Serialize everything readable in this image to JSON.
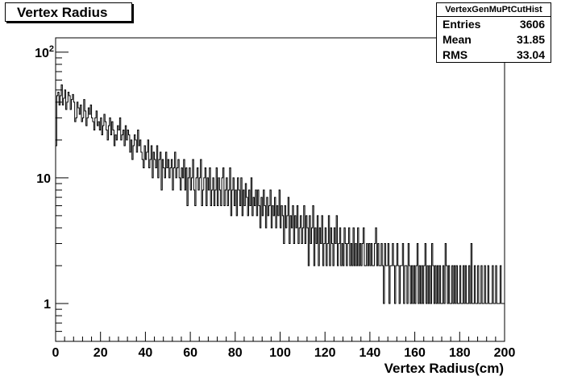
{
  "title": "Vertex Radius",
  "stats": {
    "name": "VertexGenMuPtCutHist",
    "rows": [
      {
        "label": "Entries",
        "value": "3606"
      },
      {
        "label": "Mean",
        "value": "31.85"
      },
      {
        "label": "RMS",
        "value": "33.04"
      }
    ]
  },
  "chart_data": {
    "type": "histogram",
    "title": "Vertex Radius",
    "xlabel": "Vertex Radius(cm)",
    "ylabel": "",
    "xlim": [
      0,
      200
    ],
    "ylim": [
      0.5,
      130
    ],
    "yscale": "log",
    "grid": false,
    "x_ticks": [
      "0",
      "20",
      "40",
      "60",
      "80",
      "100",
      "120",
      "140",
      "160",
      "180",
      "200"
    ],
    "y_ticks": [
      {
        "value": 1,
        "label": "1"
      },
      {
        "value": 10,
        "label": "10"
      },
      {
        "value": 100,
        "label": "10",
        "exponent": "2"
      }
    ],
    "bin_width": 0.5,
    "counts": [
      18,
      45,
      48,
      38,
      45,
      55,
      38,
      43,
      50,
      35,
      40,
      48,
      45,
      35,
      42,
      46,
      40,
      28,
      30,
      40,
      36,
      32,
      38,
      28,
      30,
      42,
      34,
      26,
      30,
      36,
      32,
      38,
      30,
      28,
      24,
      30,
      34,
      26,
      28,
      24,
      30,
      22,
      26,
      32,
      28,
      24,
      20,
      26,
      30,
      22,
      28,
      24,
      18,
      22,
      20,
      26,
      24,
      30,
      20,
      22,
      24,
      18,
      26,
      20,
      24,
      22,
      16,
      20,
      14,
      18,
      22,
      20,
      16,
      24,
      18,
      20,
      16,
      14,
      12,
      18,
      14,
      16,
      20,
      12,
      14,
      18,
      10,
      16,
      14,
      12,
      18,
      10,
      14,
      16,
      8,
      14,
      12,
      10,
      16,
      12,
      14,
      10,
      12,
      14,
      8,
      12,
      16,
      10,
      12,
      14,
      10,
      8,
      12,
      10,
      14,
      8,
      12,
      6,
      10,
      12,
      8,
      10,
      14,
      8,
      6,
      10,
      12,
      8,
      10,
      14,
      6,
      8,
      10,
      12,
      6,
      10,
      8,
      12,
      6,
      8,
      10,
      6,
      8,
      12,
      6,
      10,
      8,
      6,
      10,
      12,
      6,
      8,
      10,
      6,
      8,
      12,
      5,
      8,
      10,
      6,
      8,
      5,
      10,
      8,
      6,
      10,
      5,
      8,
      6,
      9,
      7,
      5,
      8,
      6,
      10,
      5,
      7,
      6,
      8,
      5,
      8,
      6,
      4,
      7,
      5,
      8,
      6,
      4,
      7,
      5,
      6,
      8,
      4,
      6,
      5,
      7,
      4,
      6,
      5,
      8,
      4,
      6,
      5,
      3,
      6,
      4,
      5,
      7,
      3,
      5,
      4,
      6,
      3,
      5,
      4,
      6,
      3,
      4,
      5,
      3,
      4,
      6,
      3,
      5,
      4,
      2,
      5,
      3,
      4,
      6,
      2,
      4,
      3,
      5,
      2,
      4,
      3,
      5,
      2,
      3,
      4,
      2,
      3,
      5,
      2,
      4,
      3,
      2,
      4,
      3,
      5,
      2,
      3,
      4,
      2,
      3,
      2,
      4,
      3,
      2,
      3,
      4,
      2,
      3,
      2,
      4,
      2,
      3,
      2,
      4,
      2,
      3,
      2,
      3,
      4,
      2,
      2,
      3,
      2,
      3,
      2,
      3,
      2,
      2,
      3,
      4,
      2,
      3,
      2,
      2,
      3,
      2,
      1,
      3,
      2,
      2,
      3,
      1,
      2,
      2,
      3,
      2,
      1,
      2,
      3,
      2,
      1,
      2,
      2,
      3,
      1,
      2,
      2,
      1,
      3,
      2,
      1,
      2,
      1,
      2,
      1,
      2,
      3,
      1,
      2,
      1,
      2,
      1,
      2,
      3,
      1,
      2,
      1,
      2,
      1,
      3,
      2,
      1,
      2,
      1,
      2,
      1,
      2,
      1,
      1,
      2,
      1,
      3,
      2,
      1,
      2,
      1,
      1,
      2,
      1,
      2,
      1,
      2,
      1,
      1,
      2,
      1,
      1,
      2,
      1,
      2,
      1,
      1,
      2,
      1,
      3,
      1,
      1,
      2,
      1,
      1,
      2,
      1,
      1,
      2,
      1,
      1,
      2,
      1,
      1,
      2,
      1,
      1,
      1,
      2,
      1,
      1,
      2,
      1,
      1,
      1,
      2,
      1,
      1,
      1
    ]
  }
}
